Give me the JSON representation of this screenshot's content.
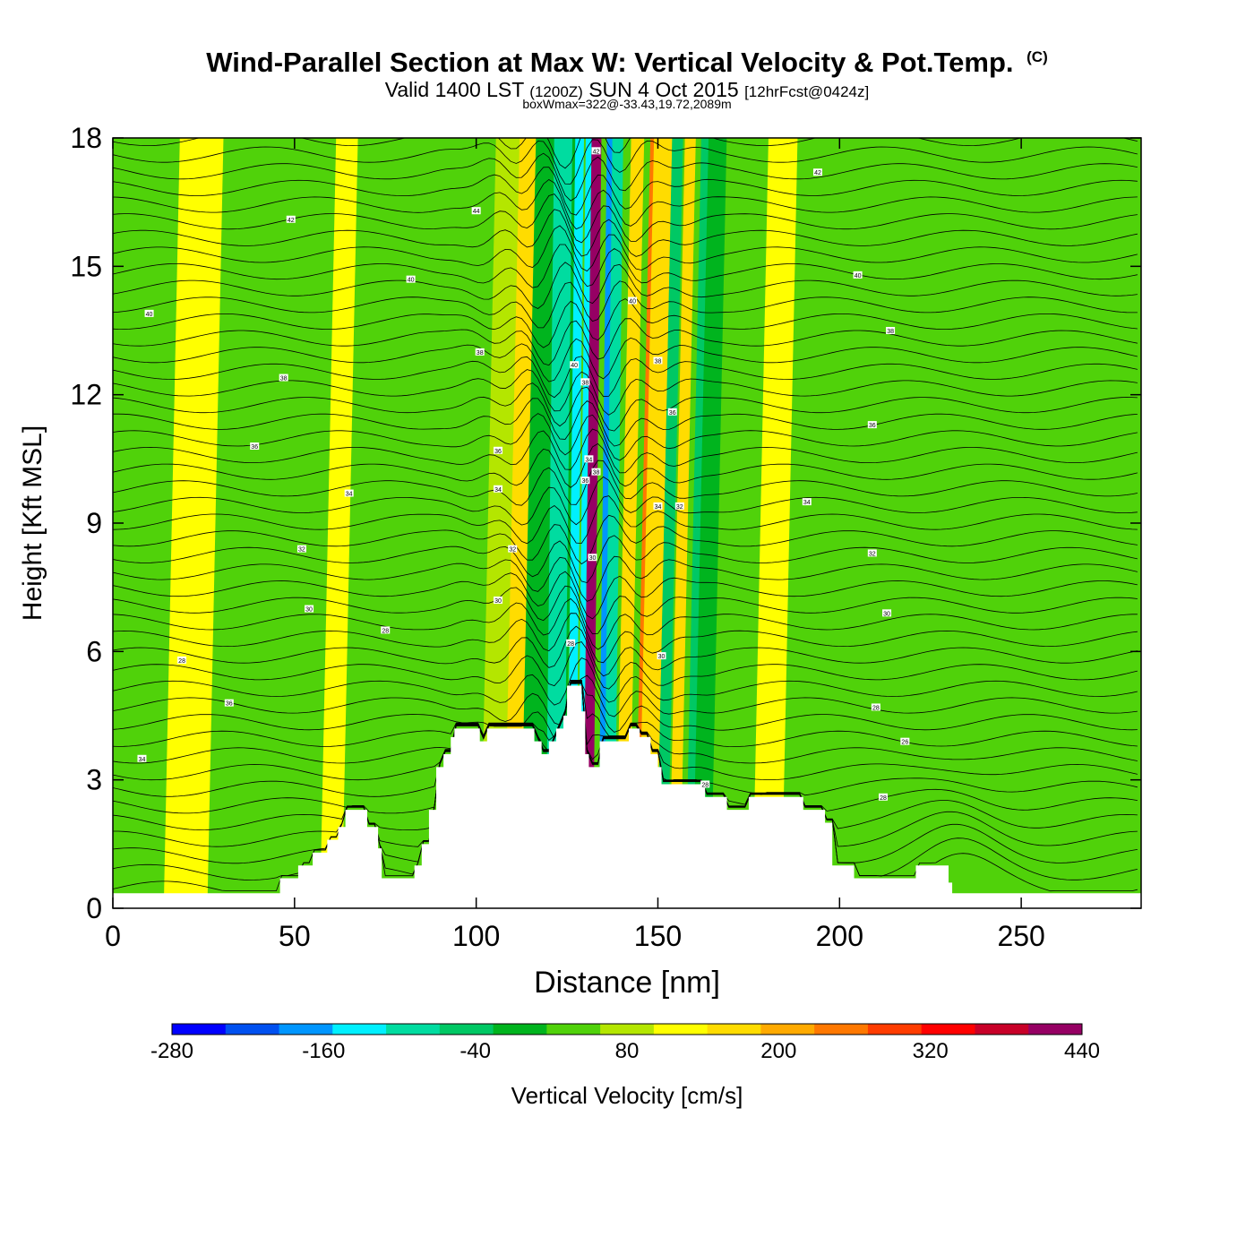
{
  "header": {
    "title": "Wind-Parallel Section at Max W: Vertical Velocity & Pot.Temp.",
    "copyright": "(C)",
    "valid_prefix": "Valid 1400 LST",
    "utc": "(1200Z)",
    "date": "SUN 4 Oct 2015",
    "forecast": "[12hrFcst@0424z]",
    "boxwmax": "boxWmax=322@-33.43,19.72,2089m"
  },
  "chart_data": {
    "type": "heatmap",
    "title": "Wind-Parallel Section at Max W: Vertical Velocity & Pot.Temp.",
    "xlabel": "Distance [nm]",
    "ylabel": "Height [Kft MSL]",
    "xlim": [
      0,
      283
    ],
    "ylim": [
      0,
      18
    ],
    "x_ticks": [
      "0",
      "50",
      "100",
      "150",
      "200",
      "250"
    ],
    "y_ticks": [
      "0",
      "3",
      "6",
      "9",
      "12",
      "15",
      "18"
    ],
    "background_w_class": "-40..0",
    "w_columns": [
      {
        "x": 104,
        "w": 100,
        "half_width": 2.5
      },
      {
        "x": 106,
        "w": 20,
        "half_width": 5
      },
      {
        "x": 110,
        "w": 100,
        "half_width": 2.5
      },
      {
        "x": 112,
        "w": 100,
        "half_width": 1.5
      },
      {
        "x": 118,
        "w": -80,
        "half_width": 6
      },
      {
        "x": 121.5,
        "w": -160,
        "half_width": 2.5
      },
      {
        "x": 126,
        "w": -200,
        "half_width": 1.2
      },
      {
        "x": 128.5,
        "w": -200,
        "half_width": 0.8
      },
      {
        "x": 130.5,
        "w": 320,
        "half_width": 1.2
      },
      {
        "x": 131.5,
        "w": 360,
        "half_width": 0.5
      },
      {
        "x": 135,
        "w": -240,
        "half_width": 1.5
      },
      {
        "x": 136.5,
        "w": -160,
        "half_width": 1.5
      },
      {
        "x": 140,
        "w": 100,
        "half_width": 1.8
      },
      {
        "x": 145,
        "w": 160,
        "half_width": 1.5
      },
      {
        "x": 147,
        "w": 100,
        "half_width": 2.5
      },
      {
        "x": 151,
        "w": -120,
        "half_width": 1.5
      },
      {
        "x": 154.5,
        "w": 100,
        "half_width": 1.5
      },
      {
        "x": 159,
        "w": -120,
        "half_width": 1.5
      },
      {
        "x": 162,
        "w": -80,
        "half_width": 2.5
      },
      {
        "x": 180,
        "w": 40,
        "half_width": 4
      },
      {
        "x": 60,
        "w": 40,
        "half_width": 3
      },
      {
        "x": 20,
        "w": 40,
        "half_width": 6
      }
    ],
    "terrain_profile_kft": [
      [
        0,
        0.35
      ],
      [
        45,
        0.35
      ],
      [
        46,
        0.7
      ],
      [
        50,
        0.7
      ],
      [
        51,
        1.0
      ],
      [
        54,
        1.0
      ],
      [
        55,
        1.3
      ],
      [
        58,
        1.3
      ],
      [
        59,
        1.6
      ],
      [
        62,
        1.9
      ],
      [
        64,
        2.3
      ],
      [
        68,
        2.3
      ],
      [
        70,
        1.9
      ],
      [
        73,
        1.4
      ],
      [
        74,
        0.7
      ],
      [
        82,
        0.7
      ],
      [
        83,
        1.0
      ],
      [
        85,
        1.5
      ],
      [
        87,
        2.3
      ],
      [
        89,
        3.3
      ],
      [
        91,
        3.6
      ],
      [
        93,
        4.0
      ],
      [
        94,
        4.2
      ],
      [
        100,
        4.2
      ],
      [
        101,
        3.9
      ],
      [
        103,
        4.2
      ],
      [
        115,
        4.2
      ],
      [
        116,
        3.9
      ],
      [
        118,
        3.6
      ],
      [
        120,
        3.9
      ],
      [
        122,
        4.2
      ],
      [
        124,
        4.5
      ],
      [
        125,
        5.2
      ],
      [
        128,
        5.2
      ],
      [
        129,
        4.6
      ],
      [
        130,
        3.6
      ],
      [
        131,
        3.3
      ],
      [
        134,
        3.9
      ],
      [
        142,
        4.2
      ],
      [
        145,
        4.0
      ],
      [
        148,
        3.6
      ],
      [
        150,
        3.3
      ],
      [
        151,
        2.9
      ],
      [
        162,
        2.9
      ],
      [
        163,
        2.6
      ],
      [
        169,
        2.3
      ],
      [
        175,
        2.6
      ],
      [
        189,
        2.6
      ],
      [
        190,
        2.3
      ],
      [
        196,
        2.0
      ],
      [
        198,
        1.0
      ],
      [
        204,
        0.7
      ],
      [
        220,
        0.7
      ],
      [
        221,
        1.0
      ],
      [
        228,
        1.0
      ],
      [
        230,
        0.6
      ],
      [
        231,
        0.35
      ],
      [
        283,
        0.35
      ]
    ],
    "theta_labels": [
      {
        "x": 8,
        "y": 3.5,
        "text": "34"
      },
      {
        "x": 32,
        "y": 4.8,
        "text": "36"
      },
      {
        "x": 19,
        "y": 5.8,
        "text": "28"
      },
      {
        "x": 75,
        "y": 6.5,
        "text": "28"
      },
      {
        "x": 54,
        "y": 7.0,
        "text": "30"
      },
      {
        "x": 52,
        "y": 8.4,
        "text": "32"
      },
      {
        "x": 65,
        "y": 9.7,
        "text": "34"
      },
      {
        "x": 39,
        "y": 10.8,
        "text": "36"
      },
      {
        "x": 47,
        "y": 12.4,
        "text": "38"
      },
      {
        "x": 10,
        "y": 13.9,
        "text": "40"
      },
      {
        "x": 82,
        "y": 14.7,
        "text": "40"
      },
      {
        "x": 49,
        "y": 16.1,
        "text": "42"
      },
      {
        "x": 100,
        "y": 16.3,
        "text": "44"
      },
      {
        "x": 101,
        "y": 13.0,
        "text": "38"
      },
      {
        "x": 106,
        "y": 10.7,
        "text": "36"
      },
      {
        "x": 106,
        "y": 9.8,
        "text": "34"
      },
      {
        "x": 110,
        "y": 8.4,
        "text": "32"
      },
      {
        "x": 106,
        "y": 7.2,
        "text": "30"
      },
      {
        "x": 126,
        "y": 6.2,
        "text": "28"
      },
      {
        "x": 127,
        "y": 12.7,
        "text": "40"
      },
      {
        "x": 130,
        "y": 12.3,
        "text": "38"
      },
      {
        "x": 131,
        "y": 10.5,
        "text": "34"
      },
      {
        "x": 130,
        "y": 10.0,
        "text": "36"
      },
      {
        "x": 133,
        "y": 10.2,
        "text": "38"
      },
      {
        "x": 132,
        "y": 8.2,
        "text": "30"
      },
      {
        "x": 133,
        "y": 17.7,
        "text": "42"
      },
      {
        "x": 143,
        "y": 14.2,
        "text": "40"
      },
      {
        "x": 150,
        "y": 12.8,
        "text": "38"
      },
      {
        "x": 154,
        "y": 11.6,
        "text": "36"
      },
      {
        "x": 150,
        "y": 9.4,
        "text": "34"
      },
      {
        "x": 156,
        "y": 9.4,
        "text": "32"
      },
      {
        "x": 151,
        "y": 5.9,
        "text": "30"
      },
      {
        "x": 163,
        "y": 2.9,
        "text": "28"
      },
      {
        "x": 212,
        "y": 2.6,
        "text": "28"
      },
      {
        "x": 218,
        "y": 3.9,
        "text": "26"
      },
      {
        "x": 210,
        "y": 4.7,
        "text": "28"
      },
      {
        "x": 213,
        "y": 6.9,
        "text": "30"
      },
      {
        "x": 209,
        "y": 8.3,
        "text": "32"
      },
      {
        "x": 191,
        "y": 9.5,
        "text": "34"
      },
      {
        "x": 209,
        "y": 11.3,
        "text": "36"
      },
      {
        "x": 214,
        "y": 13.5,
        "text": "38"
      },
      {
        "x": 205,
        "y": 14.8,
        "text": "40"
      },
      {
        "x": 194,
        "y": 17.2,
        "text": "42"
      }
    ],
    "colorbar": {
      "label": "Vertical Velocity [cm/s]",
      "colors": [
        "#0000ff",
        "#0050f0",
        "#0096ff",
        "#00f0ff",
        "#00dca0",
        "#00c864",
        "#00b41e",
        "#50d20a",
        "#b4e600",
        "#ffff00",
        "#ffdc00",
        "#ffaa00",
        "#ff7800",
        "#ff3c00",
        "#ff0000",
        "#c80028",
        "#960064"
      ],
      "tick_labels": [
        "-280",
        "-160",
        "-40",
        "80",
        "200",
        "320",
        "440"
      ]
    }
  }
}
